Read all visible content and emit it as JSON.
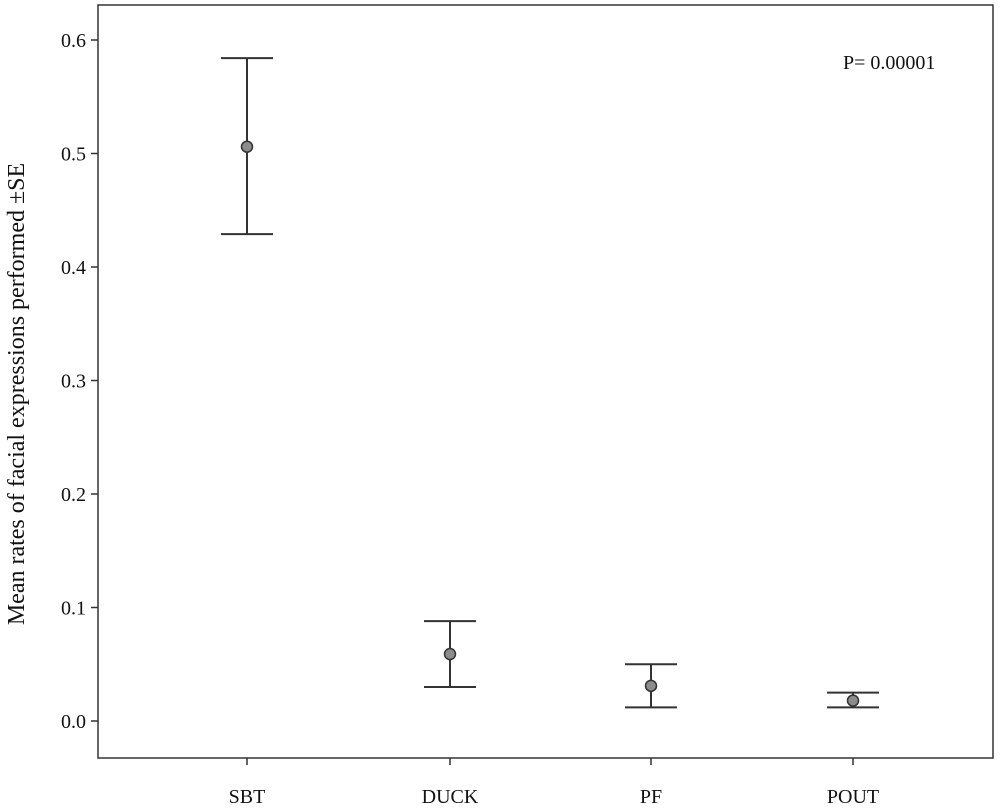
{
  "chart_data": {
    "type": "errorbar",
    "categories": [
      "SBT",
      "DUCK",
      "PF",
      "POUT"
    ],
    "series": [
      {
        "mean": [
          0.506,
          0.059,
          0.031,
          0.018
        ],
        "lower": [
          0.429,
          0.03,
          0.012,
          0.012
        ],
        "upper": [
          0.584,
          0.088,
          0.05,
          0.025
        ]
      }
    ],
    "ylabel": "Mean rates of facial expressions performed ±SE",
    "xlabel": "",
    "yticks": [
      "0.0",
      "0.1",
      "0.2",
      "0.3",
      "0.4",
      "0.5",
      "0.6"
    ],
    "ytick_values": [
      0,
      0.1,
      0.2,
      0.3,
      0.4,
      0.5,
      0.6
    ],
    "ylim": [
      -0.032,
      0.63
    ],
    "grid": false,
    "annotation": "P= 0.00001",
    "colors": {
      "marker_fill": "#8c8c8c",
      "line": "#333333",
      "axis": "#333333"
    }
  }
}
